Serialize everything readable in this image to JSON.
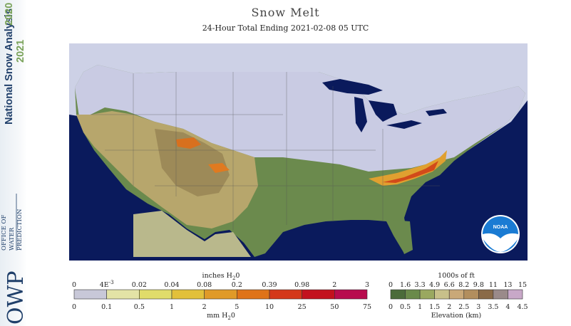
{
  "title": "Snow Melt",
  "subtitle": "24-Hour Total Ending 2021-02-08 05 UTC",
  "sidebar": {
    "program": "National Snow Analysis",
    "years": [
      "2020",
      "2021"
    ],
    "office": [
      "OFFICE OF",
      "WATER",
      "PREDICTION"
    ],
    "acronym": "OWP"
  },
  "logo": {
    "text": "NOAA"
  },
  "legend_swe": {
    "top_unit": "inches H",
    "top_unit_sub": "2",
    "top_unit_tail": "0",
    "top_labels": [
      "0",
      "4E",
      "0.02",
      "0.04",
      "0.08",
      "0.2",
      "0.39",
      "0.98",
      "2",
      "3"
    ],
    "top_exp": "-3",
    "bottom_labels": [
      "0",
      "0.1",
      "0.5",
      "1",
      "2",
      "5",
      "10",
      "25",
      "50",
      "75"
    ],
    "bottom_unit": "mm H",
    "bottom_unit_sub": "2",
    "bottom_unit_tail": "0",
    "colors": [
      "#c8c8d8",
      "#e3e3a6",
      "#e0dc6a",
      "#e2c03a",
      "#e09a28",
      "#df7318",
      "#d4381a",
      "#c3121e",
      "#b80c4e"
    ]
  },
  "legend_elev": {
    "top_unit": "1000s of ft",
    "top_labels": [
      "0",
      "1.6",
      "3.3",
      "4.9",
      "6.6",
      "8.2",
      "9.8",
      "11",
      "13",
      "15"
    ],
    "bottom_labels": [
      "0",
      "0.5",
      "1",
      "1.5",
      "2",
      "2.5",
      "3",
      "3.5",
      "4",
      "4.5"
    ],
    "bottom_unit": "Elevation (km)",
    "colors": [
      "#4b6b3a",
      "#6a8a4a",
      "#9aa860",
      "#c8c08a",
      "#c9a878",
      "#b28e5e",
      "#8a6a48",
      "#9a8a8a",
      "#c8a8c8"
    ]
  }
}
